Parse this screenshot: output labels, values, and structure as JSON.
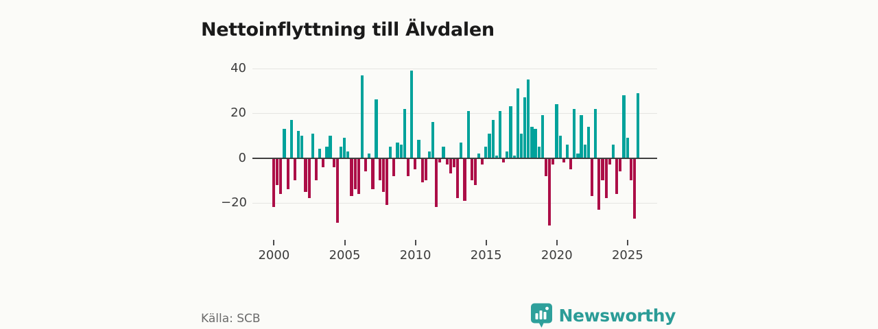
{
  "title": "Nettoinflyttning till Älvdalen",
  "source": "Källa: SCB",
  "logo": {
    "text": "Newsworthy",
    "icon": "newsworthy-badge-bar-chart-icon"
  },
  "colors": {
    "positive": "#00A29B",
    "negative": "#AC0E47",
    "background": "#FBFBF8",
    "grid": "#E5E5E2",
    "zero_line": "#3F3F3F",
    "axis_text": "#3C3C3C",
    "title_text": "#1A1A1A",
    "source_text": "#6B6B6B",
    "logo_teal": "#2EA09B"
  },
  "chart_data": {
    "type": "bar",
    "title": "Nettoinflyttning till Älvdalen",
    "frequency": "quarterly",
    "x_start": "2000 Q1",
    "x_end": "2025 Q4",
    "grid": true,
    "legend": false,
    "ylim": [
      -32,
      42
    ],
    "yticks": [
      {
        "value": 40,
        "label": "40"
      },
      {
        "value": 20,
        "label": "20"
      },
      {
        "value": 0,
        "label": "0"
      },
      {
        "value": -20,
        "label": "−20"
      }
    ],
    "xticks": [
      {
        "year": 2000,
        "label": "2000"
      },
      {
        "year": 2005,
        "label": "2005"
      },
      {
        "year": 2010,
        "label": "2010"
      },
      {
        "year": 2015,
        "label": "2015"
      },
      {
        "year": 2020,
        "label": "2020"
      },
      {
        "year": 2025,
        "label": "2025"
      }
    ],
    "values": [
      -22,
      -12,
      -16,
      13,
      -14,
      17,
      -10,
      12,
      10,
      -15,
      -18,
      11,
      -10,
      4,
      -4,
      5,
      10,
      -4,
      -29,
      5,
      9,
      3,
      -17,
      -14,
      -16,
      37,
      -6,
      2,
      -14,
      26,
      -10,
      -15,
      -21,
      5,
      -8,
      7,
      6,
      22,
      -8,
      39,
      -5,
      8,
      -11,
      -10,
      3,
      16,
      -22,
      -2,
      5,
      -3,
      -7,
      -4,
      -18,
      7,
      -19,
      21,
      -10,
      -12,
      2,
      -3,
      5,
      11,
      17,
      1,
      21,
      -2,
      3,
      23,
      1,
      31,
      11,
      27,
      35,
      14,
      13,
      5,
      19,
      -8,
      -30,
      -3,
      24,
      10,
      -2,
      6,
      -5,
      22,
      2,
      19,
      6,
      14,
      -17,
      22,
      -23,
      -10,
      -18,
      -3,
      6,
      -16,
      -6,
      28,
      9,
      -10,
      -27,
      29
    ]
  }
}
